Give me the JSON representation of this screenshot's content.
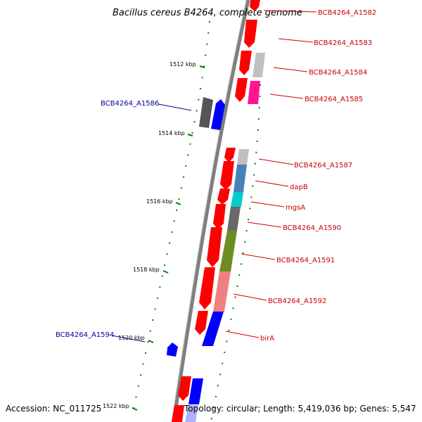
{
  "title": "Bacillus cereus B4264, complete genome",
  "footer": {
    "accession": "Accession: NC_011725",
    "topology": "Topology: circular; Length: 5,419,036 bp; Genes: 5,547"
  },
  "colors": {
    "forward_label": "#cc0000",
    "reverse_label": "#000099",
    "backbone": "#7f7f7f",
    "ticks": "#006600"
  },
  "ruler": [
    {
      "label": "1512 kbp"
    },
    {
      "label": "1514 kbp"
    },
    {
      "label": "1516 kbp"
    },
    {
      "label": "1518 kbp"
    },
    {
      "label": "1520 kbp"
    },
    {
      "label": "1522 kbp"
    }
  ],
  "gene_labels_forward": [
    "BCB4264_A1582",
    "BCB4264_A1583",
    "BCB4264_A1584",
    "BCB4264_A1585",
    "BCB4264_A1587",
    "dapB",
    "mgsA",
    "BCB4264_A1590",
    "BCB4264_A1591",
    "BCB4264_A1592",
    "birA"
  ],
  "gene_labels_reverse": [
    "BCB4264_A1586",
    "BCB4264_A1594"
  ]
}
